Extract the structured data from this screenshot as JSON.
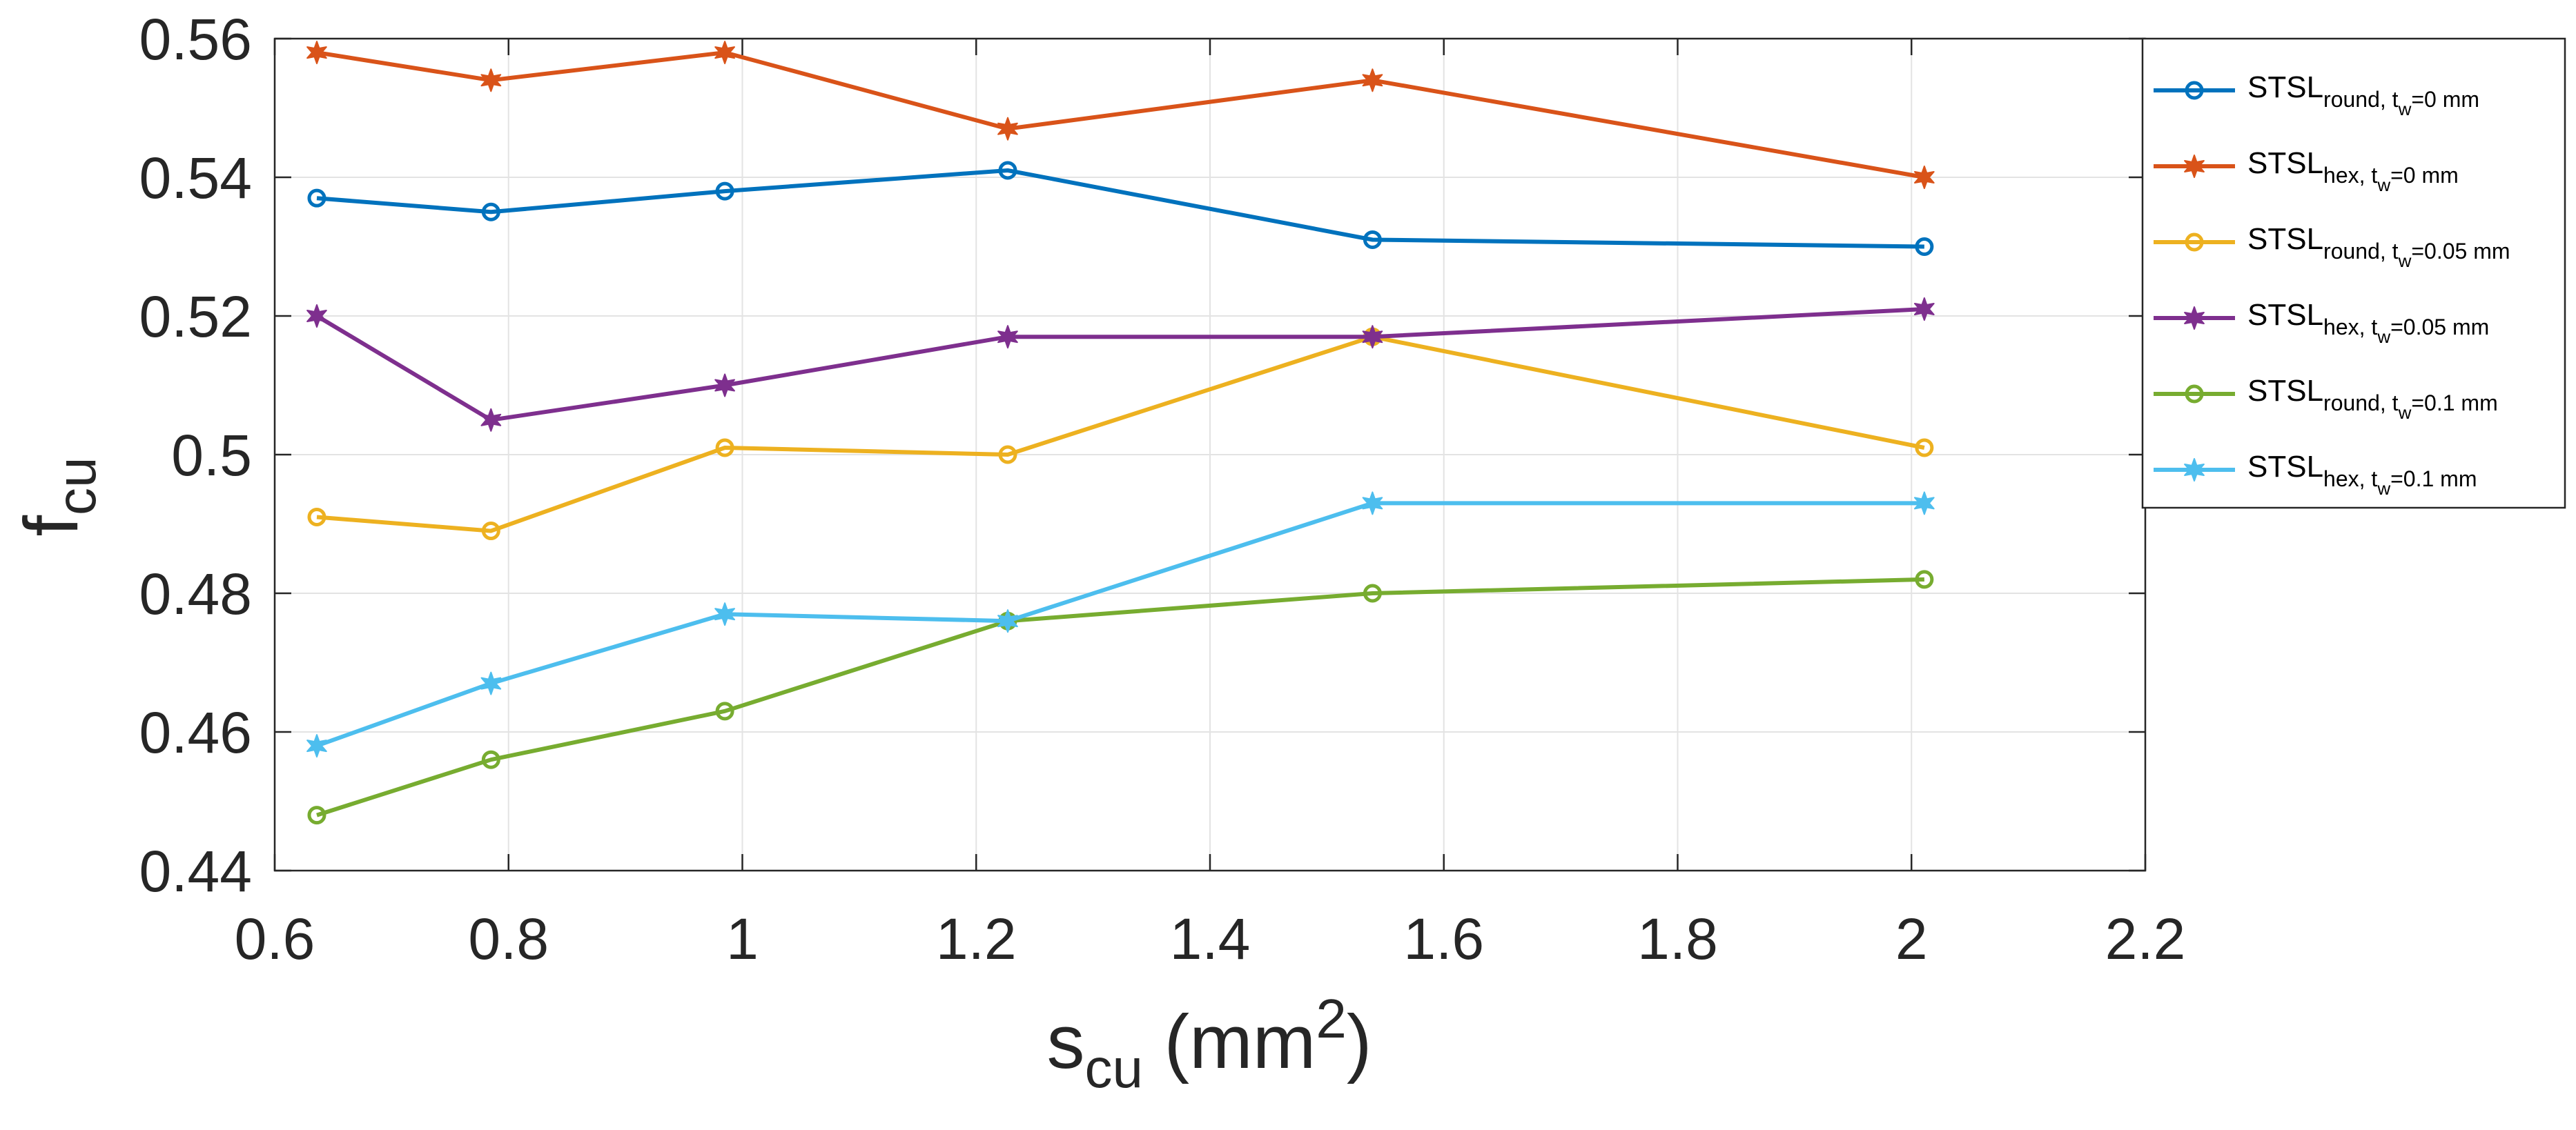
{
  "chart_data": {
    "type": "line",
    "title": "",
    "xlabel": {
      "base": "s",
      "sub": "cu",
      "rest": " (mm",
      "sup": "2",
      "end": ")"
    },
    "ylabel": {
      "base": "f",
      "sub": "cu"
    },
    "xlim": [
      0.6,
      2.2
    ],
    "ylim": [
      0.44,
      0.56
    ],
    "xticks": [
      "0.6",
      "0.8",
      "1",
      "1.2",
      "1.4",
      "1.6",
      "1.8",
      "2",
      "2.2"
    ],
    "yticks": [
      "0.44",
      "0.46",
      "0.48",
      "0.5",
      "0.52",
      "0.54",
      "0.56"
    ],
    "grid": true,
    "legend_position": "outside-right",
    "x": [
      0.636,
      0.785,
      0.985,
      1.227,
      1.539,
      2.011
    ],
    "series": [
      {
        "name": {
          "base": "STSL",
          "sub": "round, t",
          "sub2": "w",
          "tail": "=0 mm"
        },
        "color": "#0072BD",
        "marker": "circle",
        "values": [
          0.537,
          0.535,
          0.538,
          0.541,
          0.531,
          0.53
        ]
      },
      {
        "name": {
          "base": "STSL",
          "sub": "hex, t",
          "sub2": "w",
          "tail": "=0 mm"
        },
        "color": "#D95319",
        "marker": "star",
        "values": [
          0.558,
          0.554,
          0.558,
          0.547,
          0.554,
          0.54
        ]
      },
      {
        "name": {
          "base": "STSL",
          "sub": "round, t",
          "sub2": "w",
          "tail": "=0.05 mm"
        },
        "color": "#EDB120",
        "marker": "circle",
        "values": [
          0.491,
          0.489,
          0.501,
          0.5,
          0.517,
          0.501
        ]
      },
      {
        "name": {
          "base": "STSL",
          "sub": "hex, t",
          "sub2": "w",
          "tail": "=0.05 mm"
        },
        "color": "#7E2F8E",
        "marker": "star",
        "values": [
          0.52,
          0.505,
          0.51,
          0.517,
          0.517,
          0.521
        ]
      },
      {
        "name": {
          "base": "STSL",
          "sub": "round, t",
          "sub2": "w",
          "tail": "=0.1 mm"
        },
        "color": "#77AC30",
        "marker": "circle",
        "values": [
          0.448,
          0.456,
          0.463,
          0.476,
          0.48,
          0.482
        ]
      },
      {
        "name": {
          "base": "STSL",
          "sub": "hex, t",
          "sub2": "w",
          "tail": "=0.1 mm"
        },
        "color": "#4DBEEE",
        "marker": "star",
        "values": [
          0.458,
          0.467,
          0.477,
          0.476,
          0.493,
          0.493
        ]
      }
    ]
  }
}
